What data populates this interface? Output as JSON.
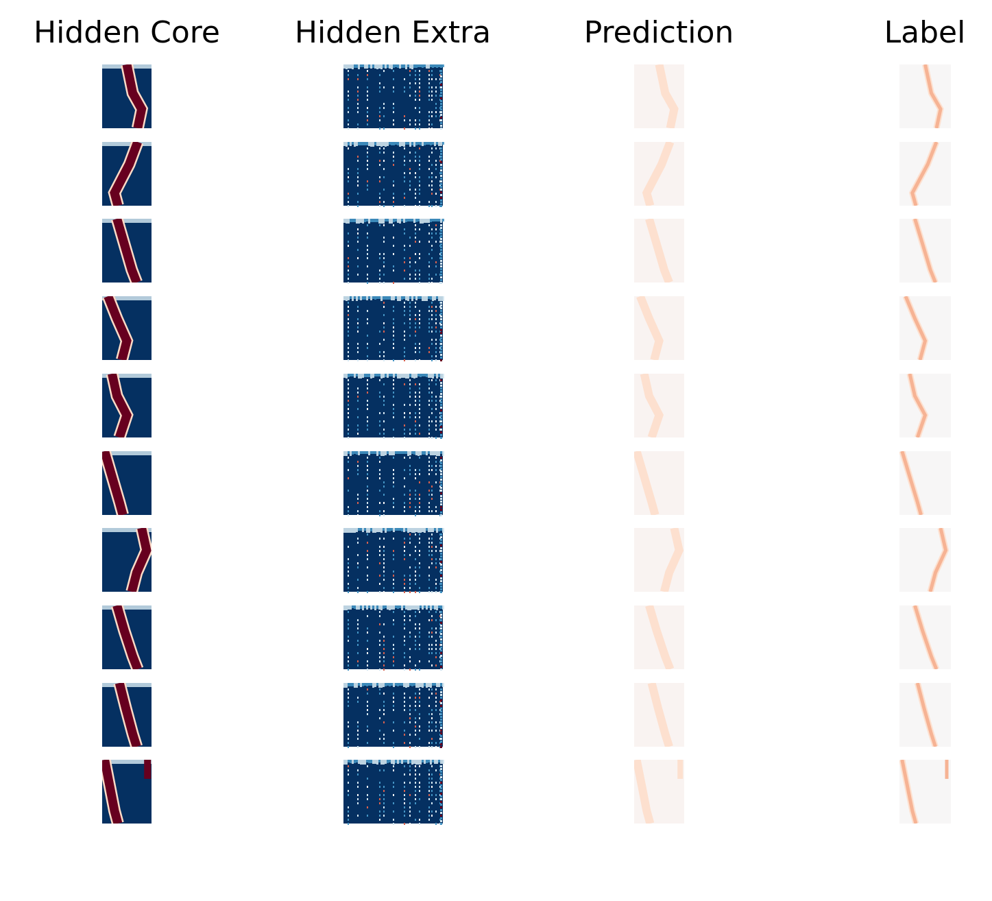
{
  "columns": [
    {
      "key": "hidden_core",
      "title": "Hidden Core"
    },
    {
      "key": "hidden_extra",
      "title": "Hidden Extra"
    },
    {
      "key": "prediction",
      "title": "Prediction"
    },
    {
      "key": "label",
      "title": "Label"
    }
  ],
  "colors": {
    "diverging_dark_blue": "#053061",
    "diverging_mid_blue": "#4393c3",
    "diverging_light_blue": "#d1e5f0",
    "diverging_white": "#f7f7f7",
    "diverging_light_red": "#fddbc7",
    "diverging_mid_red": "#d6604d",
    "diverging_dark_red": "#67001f",
    "prediction_bg": "#f9f3f1",
    "prediction_line": "#fde0cf",
    "label_bg": "#f7f6f6",
    "label_line": "#f6b394"
  },
  "rows": [
    {
      "path": [
        [
          0.5,
          0.0
        ],
        [
          0.62,
          0.45
        ],
        [
          0.8,
          0.7
        ],
        [
          0.72,
          1.0
        ]
      ]
    },
    {
      "path": [
        [
          0.72,
          0.0
        ],
        [
          0.55,
          0.35
        ],
        [
          0.25,
          0.8
        ],
        [
          0.32,
          1.0
        ]
      ]
    },
    {
      "path": [
        [
          0.3,
          0.0
        ],
        [
          0.45,
          0.4
        ],
        [
          0.6,
          0.8
        ],
        [
          0.7,
          1.0
        ]
      ]
    },
    {
      "path": [
        [
          0.12,
          0.0
        ],
        [
          0.3,
          0.35
        ],
        [
          0.5,
          0.7
        ],
        [
          0.4,
          1.0
        ]
      ]
    },
    {
      "path": [
        [
          0.2,
          0.0
        ],
        [
          0.3,
          0.35
        ],
        [
          0.5,
          0.65
        ],
        [
          0.35,
          1.0
        ]
      ]
    },
    {
      "path": [
        [
          0.05,
          0.0
        ],
        [
          0.2,
          0.4
        ],
        [
          0.35,
          0.8
        ],
        [
          0.42,
          1.0
        ]
      ]
    },
    {
      "path": [
        [
          0.8,
          0.0
        ],
        [
          0.9,
          0.35
        ],
        [
          0.7,
          0.7
        ],
        [
          0.6,
          1.0
        ]
      ]
    },
    {
      "path": [
        [
          0.3,
          0.0
        ],
        [
          0.45,
          0.4
        ],
        [
          0.62,
          0.8
        ],
        [
          0.72,
          1.0
        ]
      ]
    },
    {
      "path": [
        [
          0.35,
          0.0
        ],
        [
          0.48,
          0.4
        ],
        [
          0.62,
          0.8
        ],
        [
          0.7,
          1.0
        ]
      ]
    },
    {
      "path": [
        [
          0.05,
          0.0
        ],
        [
          0.15,
          0.4
        ],
        [
          0.25,
          0.8
        ],
        [
          0.32,
          1.0
        ]
      ],
      "path2": [
        [
          0.92,
          0.0
        ],
        [
          0.92,
          0.3
        ]
      ]
    }
  ]
}
